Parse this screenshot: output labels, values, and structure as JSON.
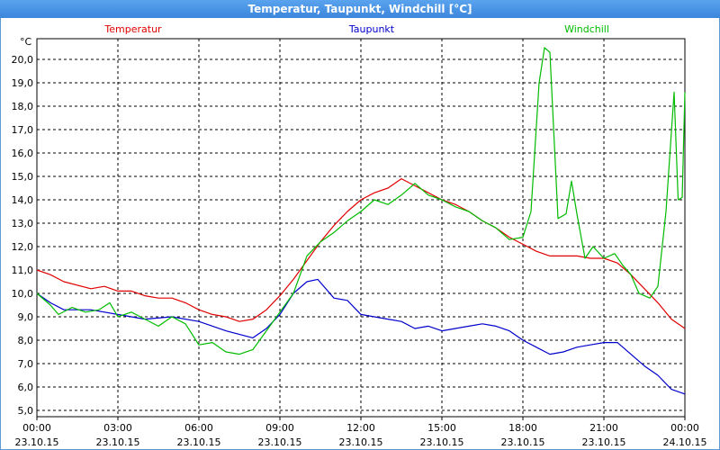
{
  "window": {
    "title": "Temperatur, Taupunkt, Windchill [°C]"
  },
  "chart_data": {
    "type": "line",
    "title": "Temperatur, Taupunkt, Windchill [°C]",
    "ylabel": "°C",
    "xlabel": "",
    "x_range_hours": [
      0,
      24
    ],
    "ylim": [
      5.0,
      21.0
    ],
    "grid": true,
    "y_ticks": [
      "5,0",
      "6,0",
      "7,0",
      "8,0",
      "9,0",
      "10,0",
      "11,0",
      "12,0",
      "13,0",
      "14,0",
      "15,0",
      "16,0",
      "17,0",
      "18,0",
      "19,0",
      "20,0"
    ],
    "x_ticks": [
      {
        "time": "00:00",
        "date": "23.10.15"
      },
      {
        "time": "03:00",
        "date": "23.10.15"
      },
      {
        "time": "06:00",
        "date": "23.10.15"
      },
      {
        "time": "09:00",
        "date": "23.10.15"
      },
      {
        "time": "12:00",
        "date": "23.10.15"
      },
      {
        "time": "15:00",
        "date": "23.10.15"
      },
      {
        "time": "18:00",
        "date": "23.10.15"
      },
      {
        "time": "21:00",
        "date": "23.10.15"
      },
      {
        "time": "00:00",
        "date": "24.10.15"
      }
    ],
    "series": [
      {
        "name": "Temperatur",
        "color": "#e00000",
        "points": [
          [
            0,
            11.0
          ],
          [
            0.5,
            10.8
          ],
          [
            1,
            10.5
          ],
          [
            2,
            10.2
          ],
          [
            2.5,
            10.3
          ],
          [
            3,
            10.1
          ],
          [
            3.5,
            10.1
          ],
          [
            4,
            9.9
          ],
          [
            4.5,
            9.8
          ],
          [
            5,
            9.8
          ],
          [
            5.5,
            9.6
          ],
          [
            6,
            9.3
          ],
          [
            6.5,
            9.1
          ],
          [
            7,
            9.0
          ],
          [
            7.5,
            8.8
          ],
          [
            8,
            8.9
          ],
          [
            8.5,
            9.3
          ],
          [
            9,
            9.9
          ],
          [
            9.5,
            10.6
          ],
          [
            10,
            11.4
          ],
          [
            10.5,
            12.2
          ],
          [
            11,
            12.9
          ],
          [
            11.5,
            13.5
          ],
          [
            12,
            14.0
          ],
          [
            12.5,
            14.3
          ],
          [
            13,
            14.5
          ],
          [
            13.5,
            14.9
          ],
          [
            14,
            14.6
          ],
          [
            14.5,
            14.3
          ],
          [
            15,
            14.0
          ],
          [
            15.5,
            13.8
          ],
          [
            16,
            13.5
          ],
          [
            16.5,
            13.1
          ],
          [
            17,
            12.8
          ],
          [
            17.5,
            12.4
          ],
          [
            18,
            12.1
          ],
          [
            18.5,
            11.8
          ],
          [
            19,
            11.6
          ],
          [
            19.5,
            11.6
          ],
          [
            20,
            11.6
          ],
          [
            20.5,
            11.5
          ],
          [
            21,
            11.5
          ],
          [
            21.5,
            11.3
          ],
          [
            22,
            10.8
          ],
          [
            22.5,
            10.2
          ],
          [
            23,
            9.6
          ],
          [
            23.5,
            8.9
          ],
          [
            24,
            8.5
          ]
        ]
      },
      {
        "name": "Taupunkt",
        "color": "#0000cc",
        "points": [
          [
            0,
            10.0
          ],
          [
            0.5,
            9.6
          ],
          [
            1,
            9.3
          ],
          [
            2,
            9.3
          ],
          [
            3,
            9.1
          ],
          [
            4,
            8.9
          ],
          [
            5,
            9.0
          ],
          [
            6,
            8.8
          ],
          [
            7,
            8.4
          ],
          [
            8,
            8.1
          ],
          [
            8.5,
            8.5
          ],
          [
            9,
            9.1
          ],
          [
            9.5,
            10.0
          ],
          [
            10,
            10.5
          ],
          [
            10.4,
            10.6
          ],
          [
            11,
            9.8
          ],
          [
            11.5,
            9.7
          ],
          [
            12,
            9.1
          ],
          [
            12.5,
            9.0
          ],
          [
            13,
            8.9
          ],
          [
            13.5,
            8.8
          ],
          [
            14,
            8.5
          ],
          [
            14.5,
            8.6
          ],
          [
            15,
            8.4
          ],
          [
            15.5,
            8.5
          ],
          [
            16,
            8.6
          ],
          [
            16.5,
            8.7
          ],
          [
            17,
            8.6
          ],
          [
            17.5,
            8.4
          ],
          [
            18,
            8.0
          ],
          [
            18.5,
            7.7
          ],
          [
            19,
            7.4
          ],
          [
            19.5,
            7.5
          ],
          [
            20,
            7.7
          ],
          [
            20.5,
            7.8
          ],
          [
            21,
            7.9
          ],
          [
            21.5,
            7.9
          ],
          [
            22,
            7.4
          ],
          [
            22.5,
            6.9
          ],
          [
            23,
            6.5
          ],
          [
            23.5,
            5.9
          ],
          [
            24,
            5.7
          ]
        ]
      },
      {
        "name": "Windchill",
        "color": "#00bb00",
        "points": [
          [
            0,
            10.0
          ],
          [
            0.5,
            9.5
          ],
          [
            0.8,
            9.1
          ],
          [
            1.3,
            9.4
          ],
          [
            1.8,
            9.2
          ],
          [
            2.3,
            9.3
          ],
          [
            2.7,
            9.6
          ],
          [
            3.0,
            9.0
          ],
          [
            3.5,
            9.2
          ],
          [
            4.0,
            8.9
          ],
          [
            4.5,
            8.6
          ],
          [
            5,
            9.0
          ],
          [
            5.5,
            8.7
          ],
          [
            6,
            7.8
          ],
          [
            6.5,
            7.9
          ],
          [
            7,
            7.5
          ],
          [
            7.5,
            7.4
          ],
          [
            8,
            7.6
          ],
          [
            8.5,
            8.4
          ],
          [
            9,
            9.2
          ],
          [
            9.5,
            10.0
          ],
          [
            10,
            11.6
          ],
          [
            10.5,
            12.2
          ],
          [
            11,
            12.6
          ],
          [
            11.5,
            13.1
          ],
          [
            12,
            13.5
          ],
          [
            12.5,
            14.0
          ],
          [
            13,
            13.8
          ],
          [
            13.5,
            14.2
          ],
          [
            14,
            14.7
          ],
          [
            14.5,
            14.2
          ],
          [
            15,
            14.0
          ],
          [
            15.5,
            13.7
          ],
          [
            16,
            13.5
          ],
          [
            16.5,
            13.1
          ],
          [
            17,
            12.8
          ],
          [
            17.5,
            12.3
          ],
          [
            18,
            12.4
          ],
          [
            18.3,
            13.5
          ],
          [
            18.6,
            19.0
          ],
          [
            18.8,
            20.5
          ],
          [
            19.0,
            20.3
          ],
          [
            19.3,
            13.2
          ],
          [
            19.6,
            13.4
          ],
          [
            19.8,
            14.8
          ],
          [
            20.0,
            13.4
          ],
          [
            20.3,
            11.5
          ],
          [
            20.6,
            12.0
          ],
          [
            21,
            11.5
          ],
          [
            21.4,
            11.7
          ],
          [
            21.7,
            11.2
          ],
          [
            22,
            10.8
          ],
          [
            22.3,
            10.0
          ],
          [
            22.7,
            9.8
          ],
          [
            23,
            10.3
          ],
          [
            23.3,
            13.5
          ],
          [
            23.6,
            18.6
          ],
          [
            23.75,
            14.0
          ],
          [
            23.9,
            14.1
          ],
          [
            24,
            18.6
          ]
        ]
      }
    ]
  }
}
